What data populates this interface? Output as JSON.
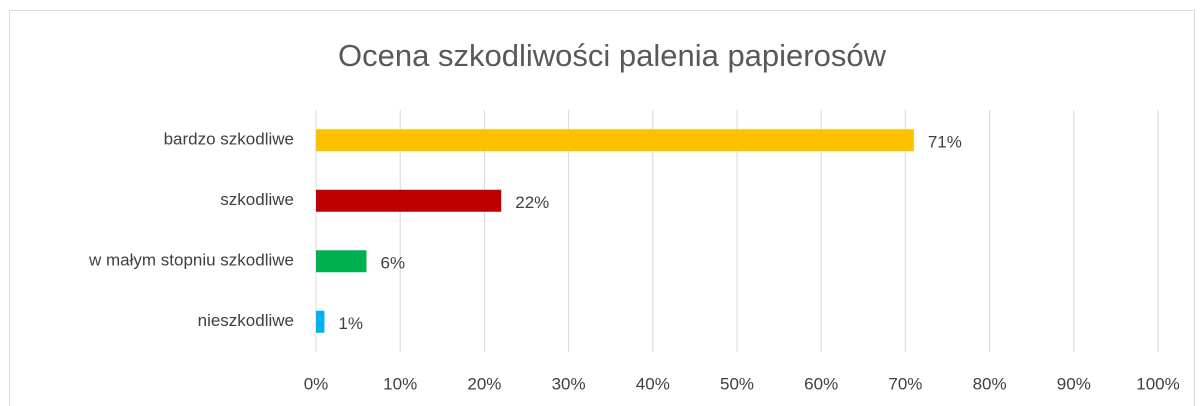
{
  "chart_data": {
    "type": "bar",
    "orientation": "horizontal",
    "title": "Ocena szkodliwości palenia papierosów",
    "categories": [
      "bardzo szkodliwe",
      "szkodliwe",
      "w małym stopniu szkodliwe",
      "nieszkodliwe"
    ],
    "values": [
      71,
      22,
      6,
      1
    ],
    "value_labels": [
      "71%",
      "22%",
      "6%",
      "1%"
    ],
    "colors": [
      "#ffc000",
      "#c00000",
      "#00b050",
      "#00b0f0"
    ],
    "xlim": [
      0,
      100
    ],
    "xticks": [
      {
        "value": 0,
        "label": "0%"
      },
      {
        "value": 10,
        "label": "10%"
      },
      {
        "value": 20,
        "label": "20%"
      },
      {
        "value": 30,
        "label": "30%"
      },
      {
        "value": 40,
        "label": "40%"
      },
      {
        "value": 50,
        "label": "50%"
      },
      {
        "value": 60,
        "label": "60%"
      },
      {
        "value": 70,
        "label": "70%"
      },
      {
        "value": 80,
        "label": "80%"
      },
      {
        "value": 90,
        "label": "90%"
      },
      {
        "value": 100,
        "label": "100%"
      }
    ],
    "grid": true
  }
}
